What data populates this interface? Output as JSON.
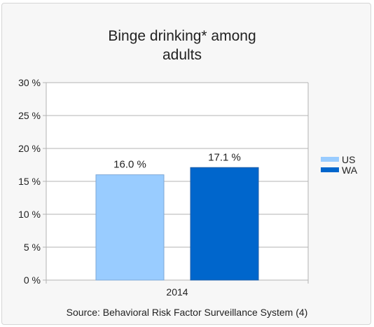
{
  "chart_data": {
    "type": "bar",
    "title_lines": [
      "Binge drinking* among",
      "adults"
    ],
    "categories": [
      "2014"
    ],
    "series": [
      {
        "name": "US",
        "values": [
          16.0
        ],
        "color": "#99ccff"
      },
      {
        "name": "WA",
        "values": [
          17.1
        ],
        "color": "#0066cc"
      }
    ],
    "data_labels": [
      "16.0 %",
      "17.1 %"
    ],
    "ylim": [
      0,
      30
    ],
    "y_ticks": [
      0,
      5,
      10,
      15,
      20,
      25,
      30
    ],
    "y_tick_labels": [
      "0 %",
      "5 %",
      "10 %",
      "15 %",
      "20 %",
      "25 %",
      "30 %"
    ],
    "grid": true,
    "legend_position": "right",
    "source": "Source: Behavioral Risk Factor Surveillance System (4)"
  }
}
